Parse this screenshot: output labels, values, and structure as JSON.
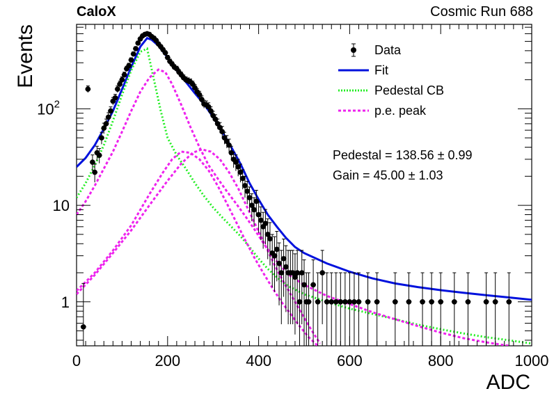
{
  "header": {
    "left": "CaloX",
    "right": "Cosmic Run 688"
  },
  "chart_data": {
    "type": "scatter",
    "xlabel": "ADC",
    "ylabel": "Events",
    "xlim": [
      0,
      1000
    ],
    "ylim": [
      0.35,
      750
    ],
    "yscale": "log",
    "x_ticks": [
      "0",
      "200",
      "400",
      "600",
      "800",
      "1000"
    ],
    "y_ticks": [
      {
        "value": 1,
        "label": "1"
      },
      {
        "value": 10,
        "label": "10"
      },
      {
        "value": 100,
        "base": "10",
        "exp": "2"
      }
    ],
    "grid": false,
    "legend_placement": "top-right",
    "legend": [
      {
        "label": "Data",
        "style": "marker",
        "color": "#000000"
      },
      {
        "label": "Fit",
        "style": "solid",
        "color": "#0011dd"
      },
      {
        "label": "Pedestal CB",
        "style": "dotted",
        "color": "#22ee22"
      },
      {
        "label": "p.e. peak",
        "style": "dashed",
        "color": "#ee22ee"
      }
    ],
    "annotations": [
      {
        "text": "Pedestal = 138.56 ± 0.99"
      },
      {
        "text": "Gain = 45.00 ± 1.03"
      }
    ],
    "series": [
      {
        "name": "Data",
        "kind": "points",
        "color": "#000000",
        "points": [
          [
            15,
            0.55
          ],
          [
            25,
            160
          ],
          [
            35,
            28
          ],
          [
            40,
            22
          ],
          [
            45,
            35
          ],
          [
            50,
            33
          ],
          [
            55,
            50
          ],
          [
            60,
            63
          ],
          [
            65,
            70
          ],
          [
            70,
            82
          ],
          [
            75,
            95
          ],
          [
            80,
            120
          ],
          [
            85,
            130
          ],
          [
            90,
            160
          ],
          [
            95,
            180
          ],
          [
            100,
            200
          ],
          [
            105,
            225
          ],
          [
            110,
            260
          ],
          [
            115,
            280
          ],
          [
            120,
            320
          ],
          [
            125,
            370
          ],
          [
            130,
            420
          ],
          [
            135,
            480
          ],
          [
            140,
            530
          ],
          [
            145,
            570
          ],
          [
            150,
            590
          ],
          [
            155,
            600
          ],
          [
            160,
            590
          ],
          [
            165,
            560
          ],
          [
            170,
            540
          ],
          [
            175,
            510
          ],
          [
            180,
            470
          ],
          [
            185,
            440
          ],
          [
            190,
            410
          ],
          [
            195,
            380
          ],
          [
            200,
            340
          ],
          [
            205,
            310
          ],
          [
            210,
            290
          ],
          [
            215,
            270
          ],
          [
            220,
            260
          ],
          [
            225,
            240
          ],
          [
            230,
            225
          ],
          [
            235,
            210
          ],
          [
            240,
            200
          ],
          [
            245,
            195
          ],
          [
            250,
            190
          ],
          [
            255,
            180
          ],
          [
            260,
            165
          ],
          [
            265,
            150
          ],
          [
            270,
            140
          ],
          [
            275,
            125
          ],
          [
            280,
            112
          ],
          [
            285,
            110
          ],
          [
            290,
            105
          ],
          [
            295,
            95
          ],
          [
            300,
            85
          ],
          [
            305,
            78
          ],
          [
            310,
            70
          ],
          [
            315,
            64
          ],
          [
            320,
            58
          ],
          [
            325,
            50
          ],
          [
            330,
            46
          ],
          [
            335,
            42
          ],
          [
            340,
            35
          ],
          [
            345,
            30
          ],
          [
            350,
            28
          ],
          [
            355,
            25
          ],
          [
            360,
            22
          ],
          [
            365,
            19
          ],
          [
            370,
            16
          ],
          [
            375,
            14
          ],
          [
            380,
            12
          ],
          [
            385,
            10
          ],
          [
            390,
            9
          ],
          [
            395,
            11
          ],
          [
            400,
            8
          ],
          [
            405,
            7
          ],
          [
            410,
            6
          ],
          [
            415,
            6.5
          ],
          [
            420,
            5
          ],
          [
            425,
            4.5
          ],
          [
            430,
            3.2
          ],
          [
            435,
            3
          ],
          [
            440,
            3.5
          ],
          [
            445,
            2.5
          ],
          [
            450,
            2
          ],
          [
            455,
            2.8
          ],
          [
            460,
            2.3
          ],
          [
            465,
            2
          ],
          [
            470,
            2
          ],
          [
            475,
            2
          ],
          [
            480,
            1.8
          ],
          [
            485,
            2
          ],
          [
            490,
            1
          ],
          [
            495,
            2
          ],
          [
            500,
            1.5
          ],
          [
            505,
            1
          ],
          [
            510,
            1
          ],
          [
            520,
            1.5
          ],
          [
            530,
            1
          ],
          [
            540,
            2
          ],
          [
            550,
            1
          ],
          [
            560,
            1
          ],
          [
            570,
            1
          ],
          [
            580,
            1
          ],
          [
            590,
            1
          ],
          [
            600,
            1
          ],
          [
            610,
            1
          ],
          [
            620,
            1
          ],
          [
            640,
            1
          ],
          [
            660,
            1
          ],
          [
            700,
            1
          ],
          [
            730,
            1
          ],
          [
            760,
            1
          ],
          [
            780,
            1
          ],
          [
            800,
            1
          ],
          [
            830,
            1
          ],
          [
            860,
            1
          ],
          [
            900,
            1
          ],
          [
            920,
            1
          ],
          [
            950,
            1
          ]
        ]
      },
      {
        "name": "Fit",
        "kind": "line",
        "color": "#0011dd",
        "points": [
          [
            0,
            25
          ],
          [
            20,
            31
          ],
          [
            40,
            42
          ],
          [
            60,
            62
          ],
          [
            80,
            95
          ],
          [
            100,
            160
          ],
          [
            120,
            270
          ],
          [
            140,
            440
          ],
          [
            155,
            540
          ],
          [
            165,
            520
          ],
          [
            180,
            450
          ],
          [
            200,
            340
          ],
          [
            220,
            250
          ],
          [
            240,
            190
          ],
          [
            260,
            145
          ],
          [
            280,
            112
          ],
          [
            300,
            82
          ],
          [
            320,
            58
          ],
          [
            340,
            40
          ],
          [
            360,
            27
          ],
          [
            380,
            17
          ],
          [
            400,
            11.5
          ],
          [
            420,
            8
          ],
          [
            440,
            6
          ],
          [
            460,
            4.6
          ],
          [
            480,
            3.7
          ],
          [
            500,
            3.2
          ],
          [
            550,
            2.5
          ],
          [
            600,
            2.05
          ],
          [
            650,
            1.75
          ],
          [
            700,
            1.55
          ],
          [
            750,
            1.42
          ],
          [
            800,
            1.32
          ],
          [
            850,
            1.24
          ],
          [
            900,
            1.17
          ],
          [
            950,
            1.11
          ],
          [
            1000,
            1.05
          ]
        ]
      },
      {
        "name": "Pedestal CB",
        "kind": "line",
        "color": "#22ee22",
        "points": [
          [
            0,
            12
          ],
          [
            20,
            17
          ],
          [
            40,
            26
          ],
          [
            60,
            42
          ],
          [
            80,
            75
          ],
          [
            100,
            140
          ],
          [
            120,
            250
          ],
          [
            140,
            390
          ],
          [
            155,
            420
          ],
          [
            170,
            200
          ],
          [
            185,
            95
          ],
          [
            200,
            50
          ],
          [
            220,
            33
          ],
          [
            240,
            24
          ],
          [
            260,
            17
          ],
          [
            280,
            12.5
          ],
          [
            300,
            9.5
          ],
          [
            320,
            7.5
          ],
          [
            340,
            6
          ],
          [
            360,
            4.8
          ],
          [
            380,
            3.7
          ],
          [
            400,
            2.8
          ],
          [
            420,
            2.2
          ],
          [
            440,
            1.8
          ],
          [
            460,
            1.5
          ],
          [
            500,
            1.2
          ],
          [
            550,
            1.0
          ],
          [
            600,
            0.85
          ],
          [
            650,
            0.75
          ],
          [
            700,
            0.66
          ],
          [
            750,
            0.58
          ],
          [
            800,
            0.52
          ],
          [
            850,
            0.47
          ],
          [
            900,
            0.43
          ],
          [
            950,
            0.4
          ],
          [
            1000,
            0.37
          ]
        ]
      },
      {
        "name": "p.e. peak",
        "kind": "line",
        "color": "#ee22ee",
        "points": [
          [
            0,
            8
          ],
          [
            20,
            11
          ],
          [
            40,
            16
          ],
          [
            60,
            24
          ],
          [
            80,
            36
          ],
          [
            100,
            58
          ],
          [
            120,
            95
          ],
          [
            140,
            150
          ],
          [
            160,
            210
          ],
          [
            180,
            255
          ],
          [
            195,
            240
          ],
          [
            210,
            180
          ],
          [
            230,
            110
          ],
          [
            250,
            65
          ],
          [
            270,
            40
          ],
          [
            290,
            26
          ],
          [
            310,
            19
          ],
          [
            330,
            14
          ],
          [
            350,
            10.5
          ],
          [
            370,
            7.8
          ],
          [
            390,
            5.7
          ],
          [
            410,
            4.1
          ],
          [
            430,
            3.0
          ],
          [
            450,
            2.3
          ],
          [
            470,
            1.85
          ],
          [
            500,
            1.5
          ],
          [
            550,
            1.15
          ],
          [
            600,
            0.95
          ],
          [
            650,
            0.78
          ],
          [
            700,
            0.66
          ],
          [
            750,
            0.56
          ],
          [
            800,
            0.48
          ],
          [
            850,
            0.42
          ],
          [
            900,
            0.38
          ],
          [
            950,
            0.35
          ]
        ]
      },
      {
        "name": "p.e. peak",
        "kind": "line",
        "color": "#ee22ee",
        "points": [
          [
            0,
            1.3
          ],
          [
            40,
            2.0
          ],
          [
            80,
            3.4
          ],
          [
            120,
            6.2
          ],
          [
            160,
            13
          ],
          [
            190,
            22
          ],
          [
            210,
            30
          ],
          [
            230,
            36
          ],
          [
            250,
            35
          ],
          [
            270,
            30
          ],
          [
            290,
            23
          ],
          [
            310,
            16
          ],
          [
            330,
            10.5
          ],
          [
            350,
            6.8
          ],
          [
            370,
            4.4
          ],
          [
            390,
            2.9
          ],
          [
            410,
            2.0
          ],
          [
            430,
            1.4
          ],
          [
            450,
            1.0
          ],
          [
            470,
            0.75
          ],
          [
            490,
            0.56
          ],
          [
            510,
            0.43
          ],
          [
            530,
            0.35
          ]
        ]
      },
      {
        "name": "p.e. peak",
        "kind": "line",
        "color": "#ee22ee",
        "points": [
          [
            0,
            1.2
          ],
          [
            40,
            1.9
          ],
          [
            80,
            3.2
          ],
          [
            120,
            5.5
          ],
          [
            160,
            10
          ],
          [
            200,
            18
          ],
          [
            230,
            27
          ],
          [
            255,
            35
          ],
          [
            275,
            38
          ],
          [
            295,
            36
          ],
          [
            315,
            30
          ],
          [
            335,
            22
          ],
          [
            355,
            15
          ],
          [
            375,
            9.5
          ],
          [
            395,
            6.0
          ],
          [
            415,
            3.8
          ],
          [
            435,
            2.4
          ],
          [
            455,
            1.6
          ],
          [
            475,
            1.1
          ],
          [
            495,
            0.75
          ],
          [
            515,
            0.52
          ],
          [
            535,
            0.37
          ]
        ]
      }
    ]
  }
}
